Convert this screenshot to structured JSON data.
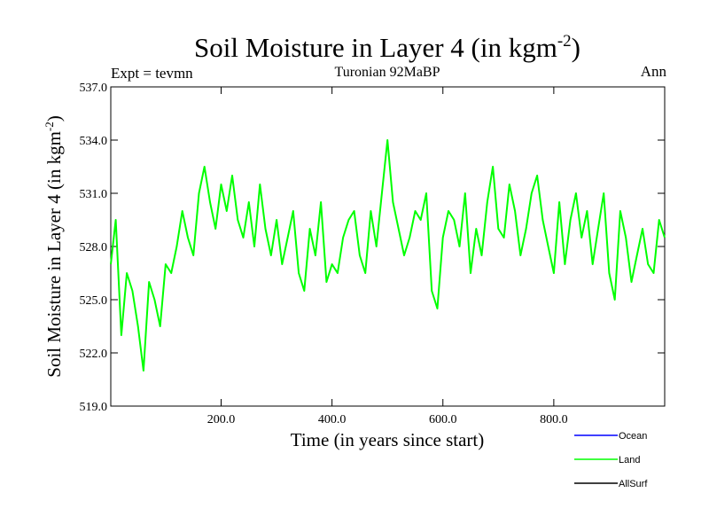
{
  "chart_data": {
    "type": "line",
    "title_main": "Soil Moisture in Layer 4 (in kgm",
    "title_sup": "-2",
    "title_close": ")",
    "subtitle_left": "Expt = tevmn",
    "subtitle_center": "Turonian  92MaBP",
    "subtitle_right": "Ann",
    "xlabel": "Time (in years since start)",
    "ylabel_main": "Soil Moisture in Layer 4 (in kgm",
    "ylabel_sup": "-2",
    "ylabel_close": ")",
    "xlim": [
      1,
      1000
    ],
    "ylim": [
      519,
      537
    ],
    "xticks": [
      200,
      400,
      600,
      800
    ],
    "xtick_labels": [
      "200.0",
      "400.0",
      "600.0",
      "800.0"
    ],
    "yticks": [
      519,
      522,
      525,
      528,
      531,
      534,
      537
    ],
    "ytick_labels": [
      "519.0",
      "522.0",
      "525.0",
      "528.0",
      "531.0",
      "534.0",
      "537.0"
    ],
    "legend_position": "bottom-right",
    "series": [
      {
        "name": "Ocean",
        "color": "#0000ff",
        "values": []
      },
      {
        "name": "Land",
        "color": "#00ff00",
        "x": [
          1,
          10,
          20,
          30,
          40,
          50,
          60,
          70,
          80,
          90,
          100,
          110,
          120,
          130,
          140,
          150,
          160,
          170,
          180,
          190,
          200,
          210,
          220,
          230,
          240,
          250,
          260,
          270,
          280,
          290,
          300,
          310,
          320,
          330,
          340,
          350,
          360,
          370,
          380,
          390,
          400,
          410,
          420,
          430,
          440,
          450,
          460,
          470,
          480,
          490,
          500,
          510,
          520,
          530,
          540,
          550,
          560,
          570,
          580,
          590,
          600,
          610,
          620,
          630,
          640,
          650,
          660,
          670,
          680,
          690,
          700,
          710,
          720,
          730,
          740,
          750,
          760,
          770,
          780,
          790,
          800,
          810,
          820,
          830,
          840,
          850,
          860,
          870,
          880,
          890,
          900,
          910,
          920,
          930,
          940,
          950,
          960,
          970,
          980,
          990,
          1000
        ],
        "values": [
          527.0,
          529.5,
          523.0,
          526.5,
          525.5,
          523.5,
          521.0,
          526.0,
          525.0,
          523.5,
          527.0,
          526.5,
          528.0,
          530.0,
          528.5,
          527.5,
          531.0,
          532.5,
          530.5,
          529.0,
          531.5,
          530.0,
          532.0,
          529.5,
          528.5,
          530.5,
          528.0,
          531.5,
          529.0,
          527.5,
          529.5,
          527.0,
          528.5,
          530.0,
          526.5,
          525.5,
          529.0,
          527.5,
          530.5,
          526.0,
          527.0,
          526.5,
          528.5,
          529.5,
          530.0,
          527.5,
          526.5,
          530.0,
          528.0,
          531.0,
          534.0,
          530.5,
          529.0,
          527.5,
          528.5,
          530.0,
          529.5,
          531.0,
          525.5,
          524.5,
          528.5,
          530.0,
          529.5,
          528.0,
          531.0,
          526.5,
          529.0,
          527.5,
          530.5,
          532.5,
          529.0,
          528.5,
          531.5,
          530.0,
          527.5,
          529.0,
          531.0,
          532.0,
          529.5,
          528.0,
          526.5,
          530.5,
          527.0,
          529.5,
          531.0,
          528.5,
          530.0,
          527.0,
          529.0,
          531.0,
          526.5,
          525.0,
          530.0,
          528.5,
          526.0,
          527.5,
          529.0,
          527.0,
          526.5,
          529.5,
          528.5
        ]
      },
      {
        "name": "AllSurf",
        "color": "#000000",
        "values": []
      }
    ]
  }
}
